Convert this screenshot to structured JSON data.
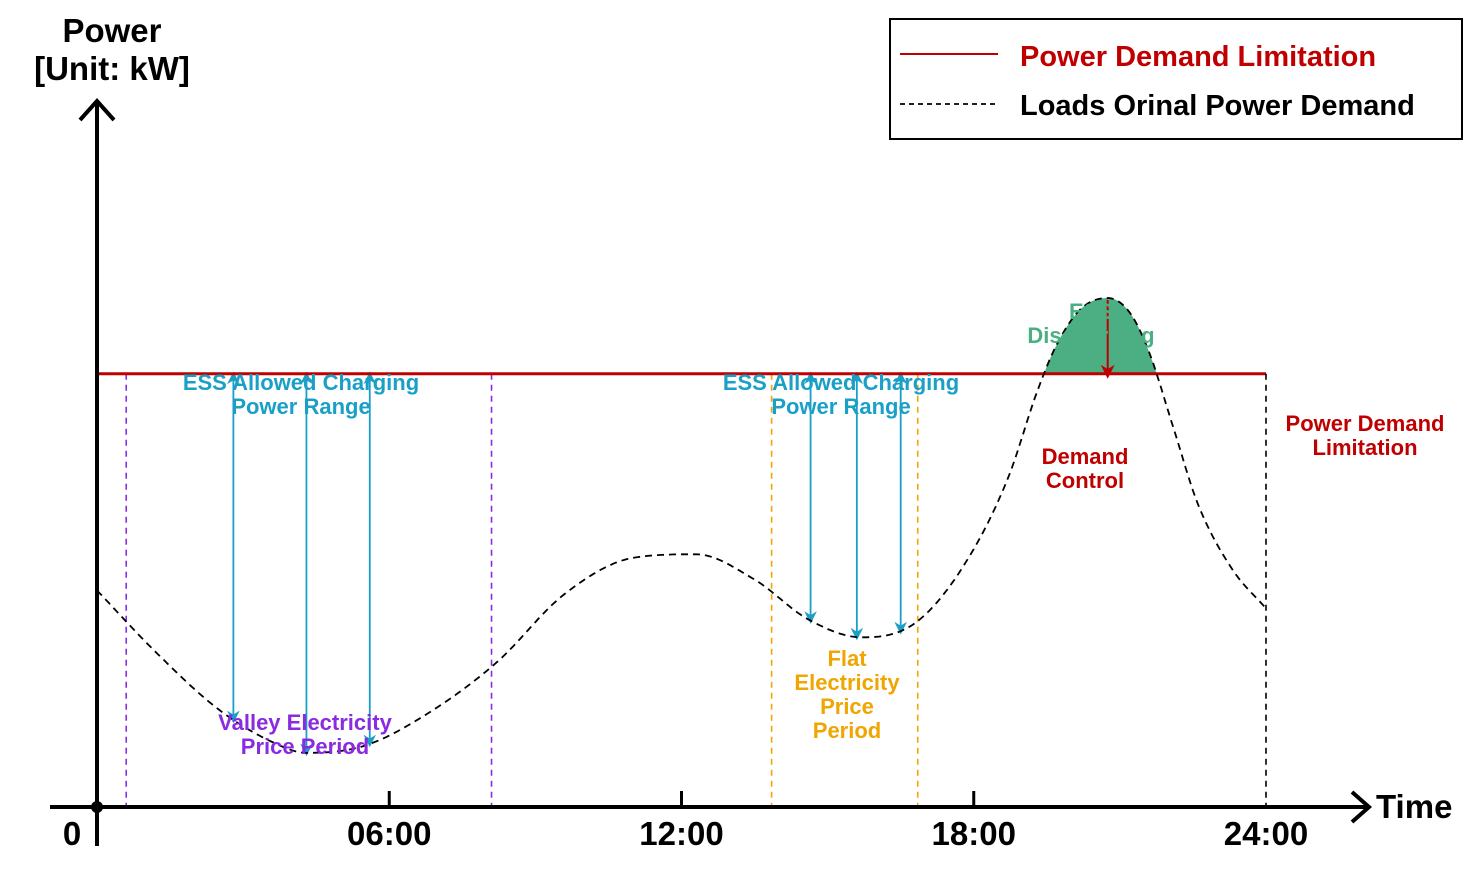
{
  "chart_data": {
    "type": "line",
    "y_axis_title_line1": "Power",
    "y_axis_title_line2": "[Unit: kW]",
    "x_axis_title": "Time",
    "xlim": [
      0,
      24
    ],
    "x_ticks": [
      {
        "value": 0,
        "label": "0"
      },
      {
        "value": 6,
        "label": "06:00"
      },
      {
        "value": 12,
        "label": "12:00"
      },
      {
        "value": 18,
        "label": "18:00"
      },
      {
        "value": 24,
        "label": "24:00"
      }
    ],
    "legend_position": "top-right",
    "legend": [
      {
        "label": "Power Demand Limitation",
        "color": "#c00000",
        "style": "solid"
      },
      {
        "label": "Loads Orinal Power Demand",
        "color": "#000000",
        "style": "dashed"
      }
    ],
    "limit_level": 0.6,
    "series": [
      {
        "name": "Loads Orinal Power Demand",
        "points": [
          [
            0,
            0.3
          ],
          [
            1.2,
            0.215
          ],
          [
            2.5,
            0.135
          ],
          [
            3.6,
            0.09
          ],
          [
            4.3,
            0.075
          ],
          [
            5.5,
            0.085
          ],
          [
            6.8,
            0.13
          ],
          [
            8.2,
            0.2
          ],
          [
            9.6,
            0.295
          ],
          [
            11,
            0.345
          ],
          [
            12.3,
            0.35
          ],
          [
            13.5,
            0.315
          ],
          [
            14.6,
            0.26
          ],
          [
            15.7,
            0.235
          ],
          [
            16.8,
            0.255
          ],
          [
            17.8,
            0.335
          ],
          [
            18.7,
            0.455
          ],
          [
            19.3,
            0.575
          ],
          [
            19.7,
            0.64
          ],
          [
            20.2,
            0.69
          ],
          [
            20.75,
            0.705
          ],
          [
            21.2,
            0.685
          ],
          [
            21.6,
            0.63
          ],
          [
            22.1,
            0.525
          ],
          [
            22.6,
            0.42
          ],
          [
            23.3,
            0.33
          ],
          [
            24,
            0.275
          ]
        ]
      },
      {
        "name": "Power Demand Limitation",
        "points": [
          [
            0,
            0.6
          ],
          [
            24,
            0.6
          ]
        ]
      }
    ],
    "periods": [
      {
        "label_lines": [
          "Valley Electricity",
          "Price Period"
        ],
        "start": 0.6,
        "end": 8.1,
        "color": "#8a2be2"
      },
      {
        "label_lines": [
          "Flat",
          "Electricity",
          "Price",
          "Period"
        ],
        "start": 13.85,
        "end": 16.85,
        "color": "#f0a500"
      }
    ],
    "charging_arrows": [
      {
        "group": 1,
        "x": [
          2.8,
          4.3,
          5.6
        ]
      },
      {
        "group": 2,
        "x": [
          14.65,
          15.6,
          16.5
        ]
      }
    ],
    "annotations": {
      "charging_label_1": [
        "ESS Allowed Charging",
        "Power Range"
      ],
      "charging_label_2": [
        "ESS Allowed Charging",
        "Power Range"
      ],
      "discharging_label": [
        "ESS",
        "Discharging"
      ],
      "demand_control_label": [
        "Demand",
        "Control"
      ],
      "limit_label": [
        "Power Demand",
        "Limitation"
      ]
    },
    "colors": {
      "limit": "#c00000",
      "demand": "#000000",
      "charging": "#1a9fc7",
      "discharging": "#4caf84",
      "valley": "#8a2be2",
      "flat": "#f0a500"
    }
  }
}
